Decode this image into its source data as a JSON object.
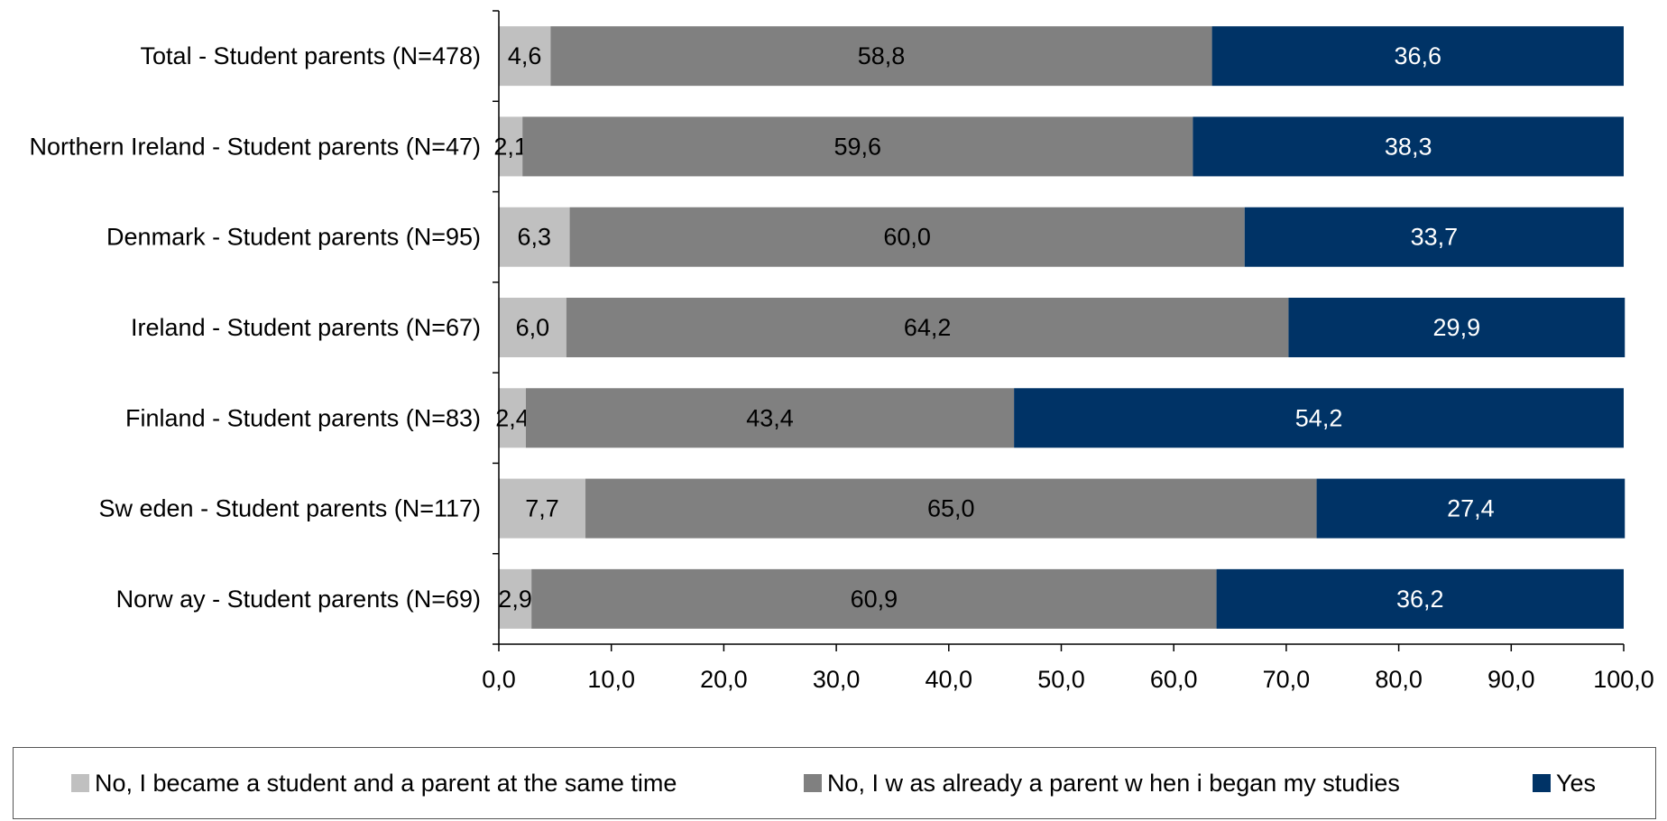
{
  "chart_data": {
    "type": "bar",
    "orientation": "horizontal",
    "stacked": true,
    "categories": [
      "Total - Student parents (N=478)",
      "Northern Ireland - Student parents (N=47)",
      "Denmark - Student parents (N=95)",
      "Ireland - Student parents (N=67)",
      "Finland - Student parents (N=83)",
      "Sw eden - Student parents (N=117)",
      "Norw ay - Student parents (N=69)"
    ],
    "series": [
      {
        "name": "No, I became a student and a parent at the same time",
        "color": "#c0c0c0",
        "label_color": "#000000",
        "values": [
          4.6,
          2.1,
          6.3,
          6.0,
          2.4,
          7.7,
          2.9
        ],
        "labels": [
          "4,6",
          "2,1",
          "6,3",
          "6,0",
          "2,4",
          "7,7",
          "2,9"
        ]
      },
      {
        "name": "No, I w as already a parent w hen i began my studies",
        "color": "#808080",
        "label_color": "#000000",
        "values": [
          58.8,
          59.6,
          60.0,
          64.2,
          43.4,
          65.0,
          60.9
        ],
        "labels": [
          "58,8",
          "59,6",
          "60,0",
          "64,2",
          "43,4",
          "65,0",
          "60,9"
        ]
      },
      {
        "name": "Yes",
        "color": "#003366",
        "label_color": "#ffffff",
        "values": [
          36.6,
          38.3,
          33.7,
          29.9,
          54.2,
          27.4,
          36.2
        ],
        "labels": [
          "36,6",
          "38,3",
          "33,7",
          "29,9",
          "54,2",
          "27,4",
          "36,2"
        ]
      }
    ],
    "xlim": [
      0,
      100
    ],
    "xticks": [
      0,
      10,
      20,
      30,
      40,
      50,
      60,
      70,
      80,
      90,
      100
    ],
    "xtick_labels": [
      "0,0",
      "10,0",
      "20,0",
      "30,0",
      "40,0",
      "50,0",
      "60,0",
      "70,0",
      "80,0",
      "90,0",
      "100,0"
    ],
    "title": "",
    "xlabel": "",
    "ylabel": "",
    "grid": false,
    "legend_position": "bottom"
  }
}
